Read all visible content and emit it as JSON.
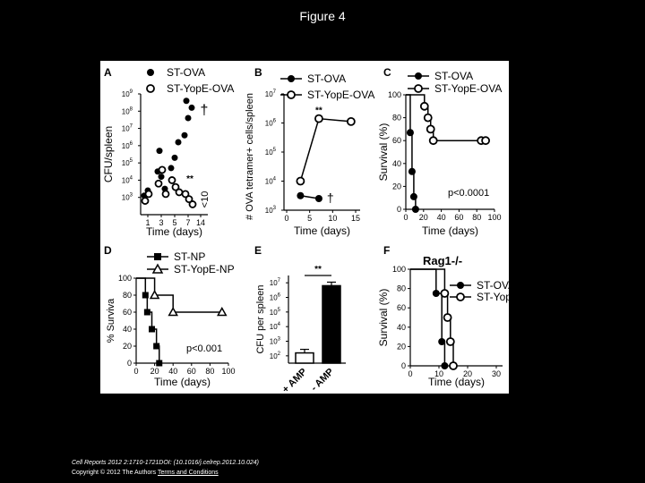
{
  "slide": {
    "title": "Figure 4"
  },
  "footer": {
    "citation": "Cell Reports 2012 2:1710-1721DOI: (10.1016/j.celrep.2012.10.024)",
    "copyright": "Copyright © 2012 The Authors",
    "terms_link": "Terms and Conditions"
  },
  "chart_data": [
    {
      "panel": "A",
      "type": "scatter",
      "ylog": true,
      "xlabel": "Time (days)",
      "ylabel": "CFU/spleen",
      "xticks": [
        "1",
        "3",
        "5",
        "7",
        "14"
      ],
      "yticks": [
        "10^3",
        "10^4",
        "10^5",
        "10^6",
        "10^7",
        "10^8",
        "10^9"
      ],
      "ylim_exp": [
        2,
        9
      ],
      "annotations": [
        "†",
        "**",
        "<10"
      ],
      "series": [
        {
          "name": "ST-OVA",
          "marker": "filled-circle",
          "points": [
            [
              1,
              3.1
            ],
            [
              1,
              3.4
            ],
            [
              3,
              4.5
            ],
            [
              3,
              4.2
            ],
            [
              3,
              3.5
            ],
            [
              3,
              5.7
            ],
            [
              5,
              4.7
            ],
            [
              5,
              5.3
            ],
            [
              5,
              6.2
            ],
            [
              7,
              6.6
            ],
            [
              7,
              7.6
            ],
            [
              7,
              8.2
            ],
            [
              7,
              8.6
            ]
          ]
        },
        {
          "name": "ST-YopE-OVA",
          "marker": "open-circle",
          "points": [
            [
              1,
              2.8
            ],
            [
              1,
              3.2
            ],
            [
              3,
              3.8
            ],
            [
              3,
              4.6
            ],
            [
              3,
              3.2
            ],
            [
              5,
              4.0
            ],
            [
              5,
              3.6
            ],
            [
              5,
              3.3
            ],
            [
              7,
              3.2
            ],
            [
              7,
              2.9
            ],
            [
              7,
              2.6
            ]
          ]
        }
      ]
    },
    {
      "panel": "B",
      "type": "line",
      "ylog": true,
      "xlabel": "Time (days)",
      "ylabel": "# OVA tetramer+ cells/spleen",
      "xticks": [
        "0",
        "5",
        "10",
        "15"
      ],
      "yticks": [
        "10^3",
        "10^4",
        "10^5",
        "10^6",
        "10^7"
      ],
      "ylim_exp": [
        3,
        7
      ],
      "xlim": [
        0,
        15
      ],
      "annotations": [
        "**",
        "†"
      ],
      "series": [
        {
          "name": "ST-OVA",
          "marker": "filled-circle",
          "x": [
            3,
            7
          ],
          "y_exp": [
            3.5,
            3.4
          ]
        },
        {
          "name": "ST-YopE-OVA",
          "marker": "open-circle",
          "x": [
            3,
            7,
            14
          ],
          "y_exp": [
            4.0,
            6.15,
            6.05
          ]
        }
      ]
    },
    {
      "panel": "C",
      "type": "line",
      "xlabel": "Time (days)",
      "ylabel": "Survival (%)",
      "xticks": [
        "0",
        "20",
        "40",
        "60",
        "80",
        "100"
      ],
      "yticks": [
        "0",
        "20",
        "40",
        "60",
        "80",
        "100"
      ],
      "xlim": [
        0,
        100
      ],
      "ylim": [
        0,
        100
      ],
      "annotations": [
        "p<0.0001"
      ],
      "series": [
        {
          "name": "ST-OVA",
          "marker": "filled-circle",
          "x": [
            0,
            5,
            7,
            9,
            11
          ],
          "y": [
            100,
            67,
            33,
            11,
            0
          ]
        },
        {
          "name": "ST-YopE-OVA",
          "marker": "open-circle",
          "x": [
            0,
            21,
            25,
            28,
            31,
            85,
            90
          ],
          "y": [
            100,
            90,
            80,
            70,
            60,
            60,
            60
          ]
        }
      ]
    },
    {
      "panel": "D",
      "type": "line",
      "xlabel": "Time (days)",
      "ylabel": "% Surviva",
      "xticks": [
        "0",
        "20",
        "40",
        "60",
        "80",
        "100"
      ],
      "yticks": [
        "0",
        "20",
        "40",
        "60",
        "80",
        "100"
      ],
      "xlim": [
        0,
        100
      ],
      "ylim": [
        0,
        100
      ],
      "annotations": [
        "p<0.001"
      ],
      "series": [
        {
          "name": "ST-NP",
          "marker": "filled-square",
          "x": [
            0,
            10,
            12,
            17,
            22,
            25
          ],
          "y": [
            100,
            80,
            60,
            40,
            20,
            0
          ]
        },
        {
          "name": "ST-YopE-NP",
          "marker": "open-triangle",
          "x": [
            0,
            20,
            40,
            93
          ],
          "y": [
            100,
            80,
            60,
            60
          ]
        }
      ]
    },
    {
      "panel": "E",
      "type": "bar",
      "ylog": true,
      "ylabel": "CFU per spleen",
      "categories": [
        "+ AMP",
        "- AMP"
      ],
      "yticks": [
        "10^2",
        "10^3",
        "10^4",
        "10^5",
        "10^6",
        "10^7"
      ],
      "ylim_exp": [
        1.5,
        7.5
      ],
      "values_exp": [
        2.2,
        6.8
      ],
      "annotations": [
        "**"
      ]
    },
    {
      "panel": "F",
      "type": "line",
      "title": "Rag1-/-",
      "xlabel": "Time (days)",
      "ylabel": "Survival (%)",
      "xticks": [
        "0",
        "10",
        "20",
        "30"
      ],
      "yticks": [
        "0",
        "20",
        "40",
        "60",
        "80",
        "100"
      ],
      "xlim": [
        0,
        30
      ],
      "ylim": [
        0,
        100
      ],
      "series": [
        {
          "name": "ST-OVA",
          "marker": "filled-circle",
          "x": [
            0,
            9,
            11,
            12
          ],
          "y": [
            100,
            75,
            25,
            0
          ]
        },
        {
          "name": "ST-YopE-OVA",
          "marker": "open-circle",
          "x": [
            0,
            12,
            13,
            14,
            15
          ],
          "y": [
            100,
            75,
            50,
            25,
            0
          ]
        }
      ]
    }
  ]
}
